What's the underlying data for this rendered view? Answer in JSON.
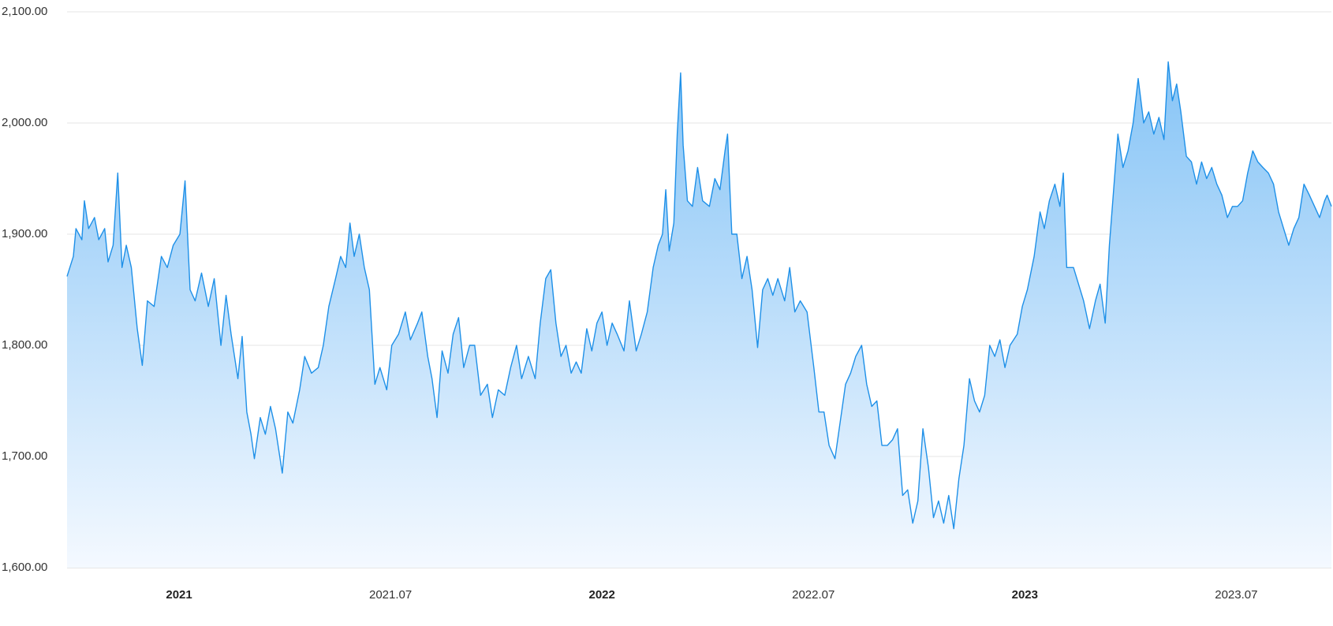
{
  "chart_data": {
    "type": "area",
    "x": [
      2020.735,
      2020.75,
      2020.756,
      2020.77,
      2020.776,
      2020.786,
      2020.8,
      2020.81,
      2020.824,
      2020.832,
      2020.844,
      2020.855,
      2020.865,
      2020.875,
      2020.887,
      2020.901,
      2020.913,
      2020.925,
      2020.941,
      2020.958,
      2020.972,
      2020.986,
      2021.002,
      2021.014,
      2021.026,
      2021.038,
      2021.053,
      2021.069,
      2021.083,
      2021.099,
      2021.111,
      2021.123,
      2021.139,
      2021.149,
      2021.16,
      2021.17,
      2021.178,
      2021.192,
      2021.204,
      2021.216,
      2021.228,
      2021.244,
      2021.257,
      2021.269,
      2021.285,
      2021.297,
      2021.313,
      2021.329,
      2021.341,
      2021.354,
      2021.37,
      2021.382,
      2021.394,
      2021.404,
      2021.414,
      2021.426,
      2021.438,
      2021.45,
      2021.463,
      2021.475,
      2021.491,
      2021.503,
      2021.519,
      2021.535,
      2021.547,
      2021.564,
      2021.574,
      2021.588,
      2021.598,
      2021.61,
      2021.622,
      2021.636,
      2021.648,
      2021.661,
      2021.673,
      2021.687,
      2021.699,
      2021.713,
      2021.729,
      2021.741,
      2021.755,
      2021.77,
      2021.784,
      2021.798,
      2021.81,
      2021.826,
      2021.842,
      2021.854,
      2021.867,
      2021.879,
      2021.891,
      2021.903,
      2021.915,
      2021.927,
      2021.939,
      2021.951,
      2021.964,
      2021.976,
      2021.988,
      2022.0,
      2022.012,
      2022.024,
      2022.036,
      2022.052,
      2022.065,
      2022.081,
      2022.093,
      2022.107,
      2022.121,
      2022.133,
      2022.143,
      2022.151,
      2022.159,
      2022.17,
      2022.178,
      2022.186,
      2022.192,
      2022.202,
      2022.214,
      2022.226,
      2022.238,
      2022.254,
      2022.267,
      2022.279,
      2022.291,
      2022.297,
      2022.307,
      2022.319,
      2022.331,
      2022.343,
      2022.355,
      2022.368,
      2022.38,
      2022.392,
      2022.404,
      2022.416,
      2022.432,
      2022.444,
      2022.456,
      2022.469,
      2022.485,
      2022.501,
      2022.513,
      2022.525,
      2022.537,
      2022.551,
      2022.563,
      2022.576,
      2022.588,
      2022.6,
      2022.614,
      2022.626,
      2022.638,
      2022.65,
      2022.662,
      2022.675,
      2022.687,
      2022.699,
      2022.711,
      2022.723,
      2022.735,
      2022.747,
      2022.759,
      2022.772,
      2022.784,
      2022.796,
      2022.808,
      2022.82,
      2022.832,
      2022.844,
      2022.856,
      2022.869,
      2022.881,
      2022.893,
      2022.905,
      2022.917,
      2022.929,
      2022.941,
      2022.953,
      2022.965,
      2022.982,
      2022.994,
      2023.006,
      2023.022,
      2023.036,
      2023.046,
      2023.058,
      2023.071,
      2023.083,
      2023.091,
      2023.099,
      2023.115,
      2023.127,
      2023.139,
      2023.153,
      2023.167,
      2023.178,
      2023.19,
      2023.2,
      2023.21,
      2023.22,
      2023.232,
      2023.244,
      2023.256,
      2023.268,
      2023.281,
      2023.293,
      2023.305,
      2023.317,
      2023.329,
      2023.339,
      2023.349,
      2023.359,
      2023.369,
      2023.382,
      2023.394,
      2023.406,
      2023.418,
      2023.43,
      2023.442,
      2023.454,
      2023.466,
      2023.479,
      2023.491,
      2023.503,
      2023.515,
      2023.527,
      2023.539,
      2023.551,
      2023.563,
      2023.576,
      2023.588,
      2023.6,
      2023.612,
      2023.624,
      2023.636,
      2023.648,
      2023.66,
      2023.673,
      2023.685,
      2023.697,
      2023.709,
      2023.715,
      2023.725
    ],
    "series": [
      {
        "color": "#1e90e8",
        "values": [
          1862,
          1880,
          1905,
          1895,
          1930,
          1905,
          1915,
          1895,
          1905,
          1875,
          1890,
          1955,
          1870,
          1890,
          1870,
          1815,
          1782,
          1840,
          1835,
          1880,
          1870,
          1890,
          1900,
          1948,
          1850,
          1840,
          1865,
          1835,
          1860,
          1800,
          1845,
          1810,
          1770,
          1808,
          1740,
          1720,
          1698,
          1735,
          1720,
          1745,
          1725,
          1685,
          1740,
          1730,
          1760,
          1790,
          1775,
          1780,
          1800,
          1835,
          1860,
          1880,
          1870,
          1910,
          1880,
          1900,
          1870,
          1850,
          1765,
          1780,
          1760,
          1800,
          1810,
          1830,
          1805,
          1820,
          1830,
          1790,
          1770,
          1735,
          1795,
          1775,
          1810,
          1825,
          1780,
          1800,
          1800,
          1755,
          1765,
          1735,
          1760,
          1755,
          1780,
          1800,
          1770,
          1790,
          1770,
          1820,
          1860,
          1868,
          1820,
          1790,
          1800,
          1775,
          1785,
          1775,
          1815,
          1795,
          1820,
          1830,
          1800,
          1820,
          1810,
          1795,
          1840,
          1795,
          1810,
          1830,
          1870,
          1890,
          1900,
          1940,
          1885,
          1910,
          1990,
          2045,
          1980,
          1930,
          1925,
          1960,
          1930,
          1925,
          1950,
          1940,
          1975,
          1990,
          1900,
          1900,
          1860,
          1880,
          1850,
          1798,
          1850,
          1860,
          1845,
          1860,
          1840,
          1870,
          1830,
          1840,
          1830,
          1780,
          1740,
          1740,
          1710,
          1698,
          1730,
          1765,
          1775,
          1790,
          1800,
          1765,
          1745,
          1750,
          1710,
          1710,
          1715,
          1725,
          1665,
          1670,
          1640,
          1660,
          1725,
          1690,
          1645,
          1660,
          1640,
          1665,
          1635,
          1680,
          1710,
          1770,
          1750,
          1740,
          1755,
          1800,
          1790,
          1805,
          1780,
          1800,
          1810,
          1835,
          1850,
          1880,
          1920,
          1905,
          1930,
          1945,
          1925,
          1955,
          1870,
          1870,
          1855,
          1840,
          1815,
          1840,
          1855,
          1820,
          1890,
          1940,
          1990,
          1960,
          1975,
          2000,
          2040,
          2000,
          2010,
          1990,
          2005,
          1985,
          2055,
          2020,
          2035,
          2010,
          1970,
          1965,
          1945,
          1965,
          1950,
          1960,
          1945,
          1935,
          1915,
          1925,
          1925,
          1930,
          1955,
          1975,
          1965,
          1960,
          1955,
          1945,
          1920,
          1905,
          1890,
          1905,
          1915,
          1945,
          1935,
          1925,
          1915,
          1930,
          1935,
          1925
        ]
      }
    ],
    "xlim": [
      2020.735,
      2023.725
    ],
    "xticks": [
      {
        "value": 2021,
        "label": "2021"
      },
      {
        "value": 2021.5,
        "label": "2021.07"
      },
      {
        "value": 2022,
        "label": "2022"
      },
      {
        "value": 2022.5,
        "label": "2022.07"
      },
      {
        "value": 2023,
        "label": "2023"
      },
      {
        "value": 2023.5,
        "label": "2023.07"
      }
    ],
    "ylim": [
      1600,
      2100
    ],
    "yticks": [
      {
        "value": 1600,
        "label": "1,600.00"
      },
      {
        "value": 1700,
        "label": "1,700.00"
      },
      {
        "value": 1800,
        "label": "1,800.00"
      },
      {
        "value": 1900,
        "label": "1,900.00"
      },
      {
        "value": 2000,
        "label": "2,000.00"
      },
      {
        "value": 2100,
        "label": "2,100.00"
      }
    ],
    "grid": true
  }
}
